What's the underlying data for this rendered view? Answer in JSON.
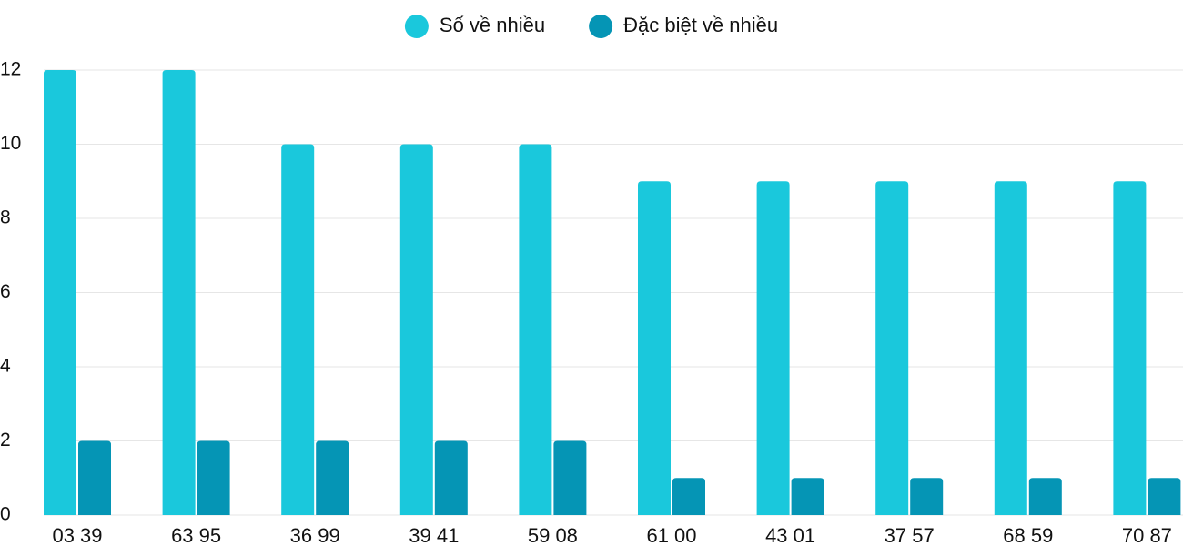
{
  "chart_data": {
    "type": "bar",
    "categories": [
      "03 39",
      "63 95",
      "36 99",
      "39 41",
      "59 08",
      "61 00",
      "43 01",
      "37 57",
      "68 59",
      "70 87"
    ],
    "series": [
      {
        "name": "Số về nhiều",
        "color": "#1ac8dc",
        "values": [
          12,
          12,
          10,
          10,
          10,
          9,
          9,
          9,
          9,
          9
        ]
      },
      {
        "name": "Đặc biệt về nhiều",
        "color": "#0595b5",
        "values": [
          2,
          2,
          2,
          2,
          2,
          1,
          1,
          1,
          1,
          1
        ]
      }
    ],
    "ylim": [
      0,
      12
    ],
    "yticks": [
      0,
      2,
      4,
      6,
      8,
      10,
      12
    ],
    "grid": true,
    "legend": "top"
  }
}
